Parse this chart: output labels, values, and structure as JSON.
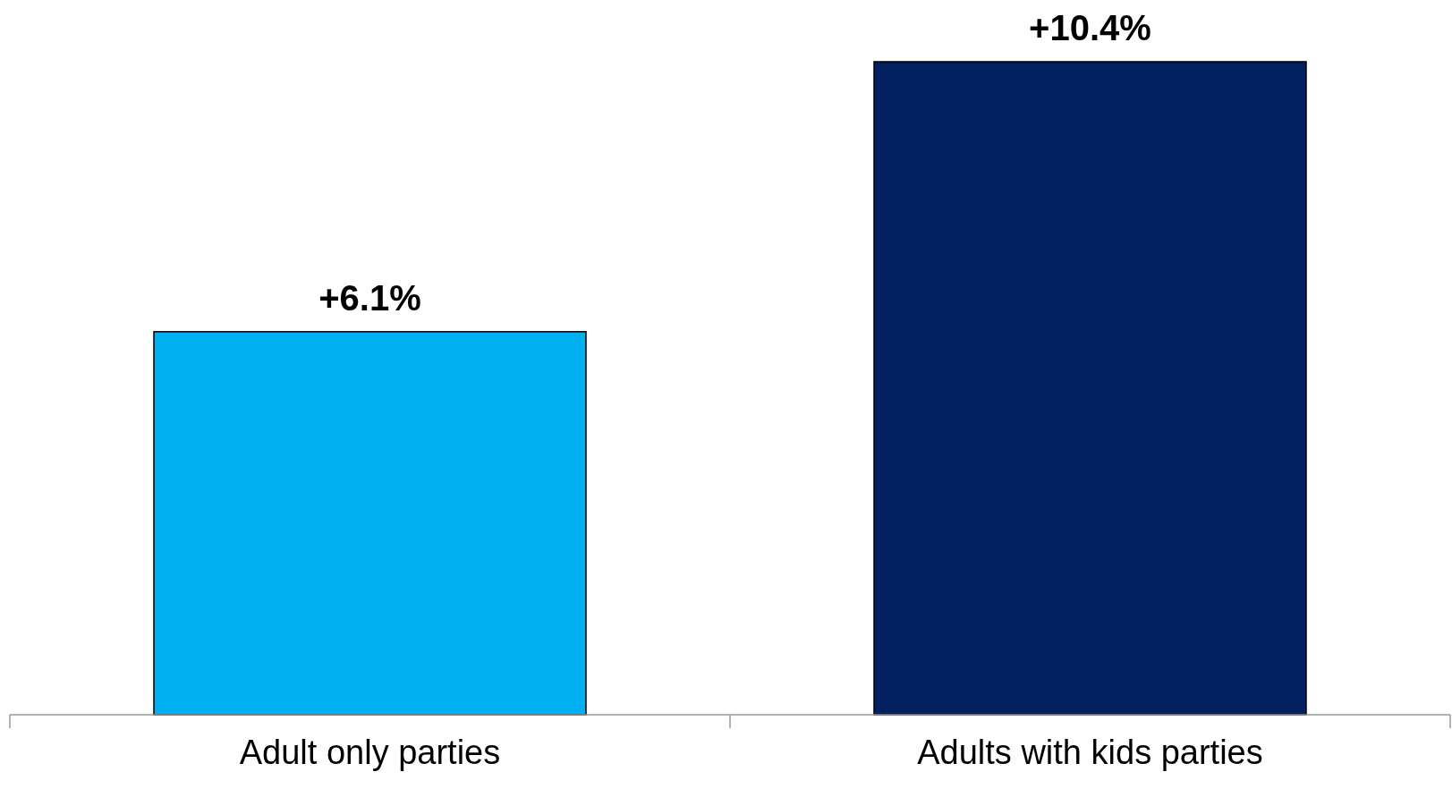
{
  "chart_data": {
    "type": "bar",
    "categories": [
      "Adult only parties",
      "Adults with kids parties"
    ],
    "values": [
      6.1,
      10.4
    ],
    "colors": [
      "#00b0f0",
      "#002060"
    ],
    "value_labels": [
      "+6.1%",
      "+10.4%"
    ]
  }
}
